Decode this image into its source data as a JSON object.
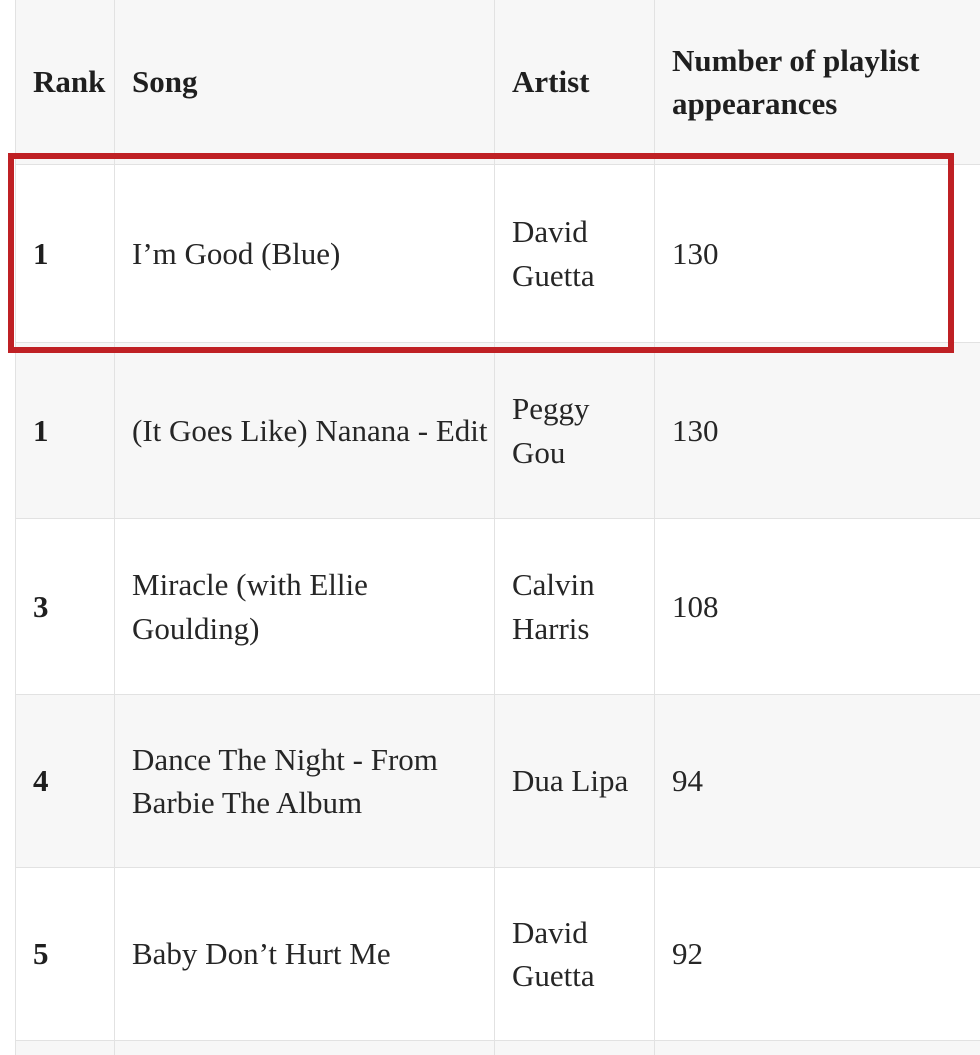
{
  "table": {
    "headers": {
      "rank": "Rank",
      "song": "Song",
      "artist": "Artist",
      "appearances": "Number of playlist\nappearances"
    },
    "rows": [
      {
        "rank": "1",
        "song": "I’m Good (Blue)",
        "artist": "David\nGuetta",
        "appearances": "130",
        "highlighted": true
      },
      {
        "rank": "1",
        "song": "(It Goes Like) Nanana - Edit",
        "artist": "Peggy\nGou",
        "appearances": "130",
        "highlighted": false
      },
      {
        "rank": "3",
        "song": "Miracle (with Ellie\nGoulding)",
        "artist": "Calvin\nHarris",
        "appearances": "108",
        "highlighted": false
      },
      {
        "rank": "4",
        "song": "Dance The Night - From\nBarbie The Album",
        "artist": "Dua Lipa",
        "appearances": "94",
        "highlighted": false
      },
      {
        "rank": "5",
        "song": "Baby Don’t Hurt Me",
        "artist": "David\nGuetta",
        "appearances": "92",
        "highlighted": false
      }
    ]
  },
  "annotation": {
    "type": "highlight-box",
    "highlighted_row_rank": "1",
    "color": "#bf2024"
  },
  "colors": {
    "stripe_background": "#f7f7f7",
    "row_background": "#ffffff",
    "grid_border": "#e2e2e2",
    "text": "#262626",
    "highlight_red": "#bf2024"
  }
}
